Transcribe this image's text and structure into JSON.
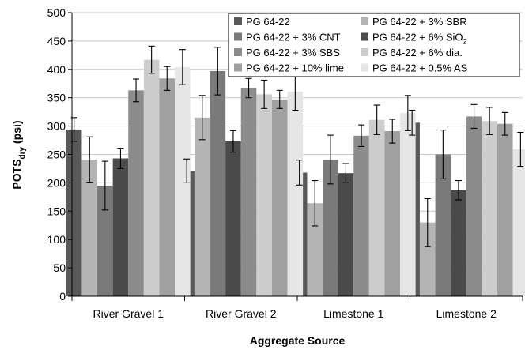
{
  "chart_data": {
    "type": "bar",
    "xlabel": "Aggregate Source",
    "ylabel_main": "POTS",
    "ylabel_sub": "dry",
    "ylabel_unit": " (psi)",
    "ylim": [
      0,
      500
    ],
    "yticks": [
      0,
      50,
      100,
      150,
      200,
      250,
      300,
      350,
      400,
      450,
      500
    ],
    "categories": [
      "River Gravel 1",
      "River Gravel 2",
      "Limestone 1",
      "Limestone 2"
    ],
    "legend_position": "top-right",
    "series": [
      {
        "name": "PG 64-22",
        "color": "#595959",
        "values": [
          294,
          221,
          218,
          306
        ],
        "errors": [
          21,
          21,
          22,
          22
        ]
      },
      {
        "name": "PG 64-22 + 3% SBR",
        "color": "#b4b4b4",
        "values": [
          241,
          315,
          164,
          130
        ],
        "errors": [
          40,
          39,
          40,
          42
        ]
      },
      {
        "name": "PG 64-22 + 3% CNT",
        "color": "#7a7a7a",
        "values": [
          195,
          397,
          241,
          250
        ],
        "errors": [
          43,
          42,
          43,
          43
        ]
      },
      {
        "name": "PG 64-22 + 6% SiO",
        "name_sub": "2",
        "color": "#4a4a4a",
        "values": [
          243,
          273,
          217,
          187
        ],
        "errors": [
          18,
          19,
          17,
          17
        ]
      },
      {
        "name": "PG 64-22 + 3% SBS",
        "color": "#8c8c8c",
        "values": [
          363,
          367,
          283,
          317
        ],
        "errors": [
          20,
          17,
          19,
          21
        ]
      },
      {
        "name": "PG 64-22 + 6% dia.",
        "color": "#cdcdcd",
        "values": [
          417,
          356,
          311,
          309
        ],
        "errors": [
          24,
          25,
          26,
          24
        ]
      },
      {
        "name": "PG 64-22 + 10% lime",
        "color": "#a0a0a0",
        "values": [
          384,
          347,
          291,
          304
        ],
        "errors": [
          21,
          16,
          21,
          20
        ]
      },
      {
        "name": "PG 64-22 + 0.5% AS",
        "color": "#e6e6e6",
        "values": [
          404,
          361,
          323,
          259
        ],
        "errors": [
          31,
          33,
          31,
          30
        ]
      }
    ]
  }
}
